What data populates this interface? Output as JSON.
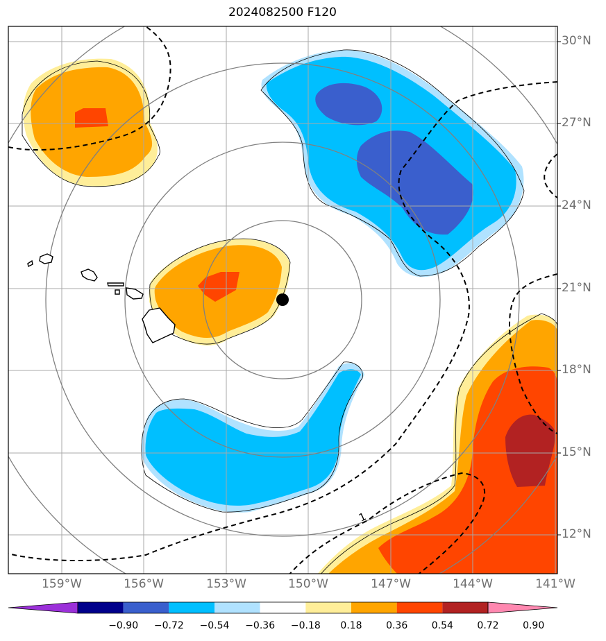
{
  "title": "2024082500 F120",
  "lat_labels": [
    "30°N",
    "27°N",
    "24°N",
    "21°N",
    "18°N",
    "15°N",
    "12°N"
  ],
  "lon_labels": [
    "159°W",
    "156°W",
    "153°W",
    "150°W",
    "147°W",
    "144°W",
    "141°W"
  ],
  "contour_label": "1",
  "colorbar": {
    "tick_labels": [
      "−0.90",
      "−0.72",
      "−0.54",
      "−0.36",
      "−0.18",
      "0.18",
      "0.36",
      "0.54",
      "0.72",
      "0.90"
    ],
    "colors": [
      "#9b30d9",
      "#00008b",
      "#3a5fcd",
      "#00bfff",
      "#b0e2ff",
      "#ffffff",
      "#ffee99",
      "#ffa500",
      "#ff4500",
      "#b22222",
      "#ff88b0"
    ]
  },
  "colors": {
    "blue_light": "#b0e2ff",
    "blue": "#00bfff",
    "blue_dark": "#3a5fcd",
    "yellow": "#ffee99",
    "orange": "#ffa500",
    "red_orange": "#ff4500",
    "dark_red": "#b22222"
  },
  "marker": "storm-center"
}
